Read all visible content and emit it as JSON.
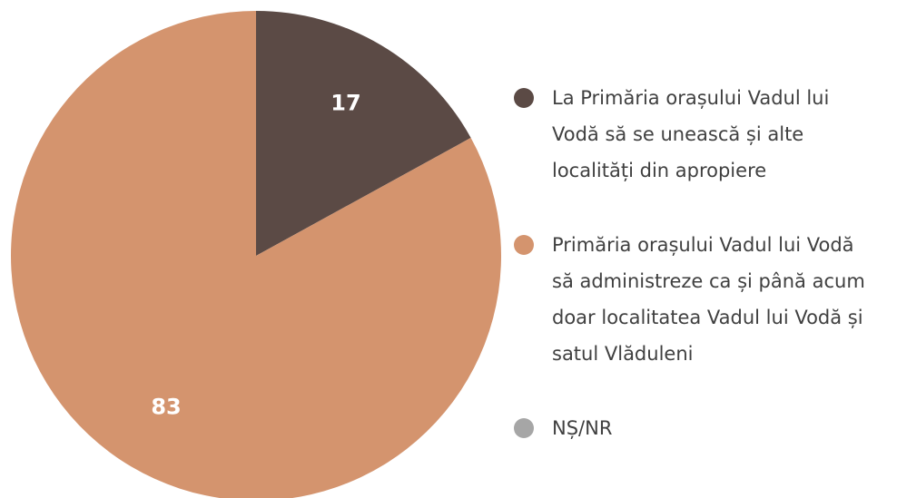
{
  "chart_data": {
    "type": "pie",
    "categories": [
      "La Primăria orașului Vadul lui Vodă să se unească și alte localități din apropiere",
      "Primăria orașului Vadul lui Vodă să administreze ca și până acum doar localitatea Vadul lui Vodă și satul Vlăduleni",
      "NȘ/NR"
    ],
    "values": [
      17,
      83,
      0
    ],
    "colors": [
      "#5b4a45",
      "#d4946e",
      "#a6a6a6"
    ],
    "legend": "right"
  }
}
